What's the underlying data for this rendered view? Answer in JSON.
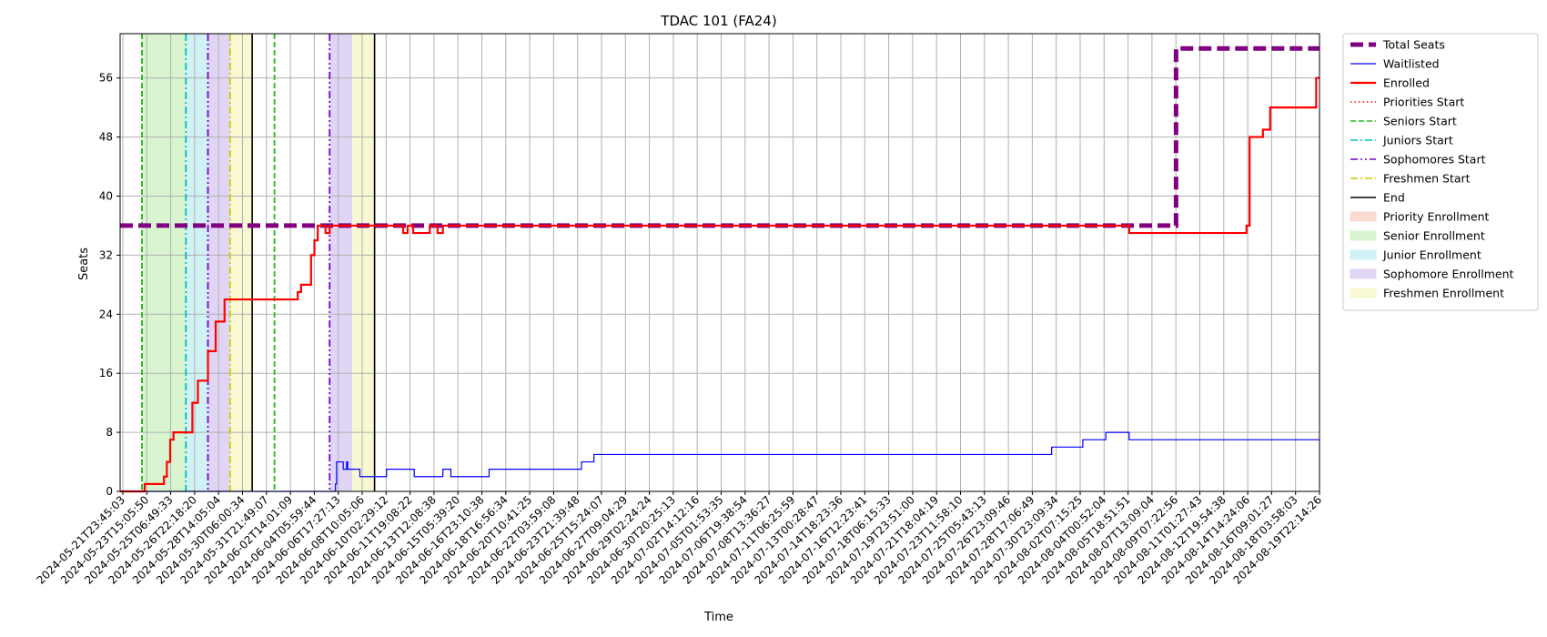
{
  "chart_data": {
    "type": "line",
    "title": "TDAC 101 (FA24)",
    "xlabel": "Time",
    "ylabel": "Seats",
    "ylim": [
      0,
      62
    ],
    "xlim": [
      "2024-05-21T23:45:03",
      "2024-08-20T02:00:00"
    ],
    "yticks": [
      0,
      8,
      16,
      24,
      32,
      40,
      48,
      56
    ],
    "grid": true,
    "legend_position": "outside-right",
    "x_tick_labels": [
      "2024-05-21T23:45:03",
      "2024-05-23T15:05:50",
      "2024-05-25T06:49:33",
      "2024-05-26T22:18:20",
      "2024-05-28T14:05:04",
      "2024-05-30T06:00:34",
      "2024-05-31T21:49:07",
      "2024-06-02T14:01:09",
      "2024-06-04T05:59:44",
      "2024-06-06T17:27:13",
      "2024-06-08T10:05:06",
      "2024-06-10T02:29:12",
      "2024-06-11T19:08:22",
      "2024-06-13T12:08:38",
      "2024-06-15T05:39:20",
      "2024-06-16T23:10:38",
      "2024-06-18T16:56:34",
      "2024-06-20T10:41:25",
      "2024-06-22T03:59:08",
      "2024-06-23T21:39:48",
      "2024-06-25T15:24:07",
      "2024-06-27T09:04:29",
      "2024-06-29T02:24:24",
      "2024-06-30T20:25:13",
      "2024-07-02T14:12:16",
      "2024-07-05T01:53:35",
      "2024-07-06T19:38:54",
      "2024-07-08T13:36:27",
      "2024-07-11T06:25:59",
      "2024-07-13T00:28:47",
      "2024-07-14T18:23:36",
      "2024-07-16T12:23:41",
      "2024-07-18T06:15:33",
      "2024-07-19T23:51:00",
      "2024-07-21T18:04:19",
      "2024-07-23T11:58:10",
      "2024-07-25T05:43:13",
      "2024-07-26T23:09:46",
      "2024-07-28T17:06:49",
      "2024-07-30T23:09:34",
      "2024-08-02T07:15:25",
      "2024-08-04T00:52:04",
      "2024-08-05T18:51:51",
      "2024-08-07T13:09:04",
      "2024-08-09T07:22:56",
      "2024-08-11T01:27:43",
      "2024-08-12T19:54:38",
      "2024-08-14T14:24:06",
      "2024-08-16T09:01:27",
      "2024-08-18T03:58:03",
      "2024-08-19T22:14:26"
    ],
    "x_tick_labels_positioned_by_index": true,
    "series": [
      {
        "name": "Total Seats",
        "style": "dashed-thick",
        "color": "#800080",
        "x": [
          "2024-05-21T23:45:03",
          "2024-08-09T07:22:56",
          "2024-08-09T07:22:56",
          "2024-08-20T02:00:00"
        ],
        "y": [
          36,
          36,
          60,
          60
        ]
      },
      {
        "name": "Waitlisted",
        "style": "solid-thin",
        "color": "#0000ff",
        "x": [
          "2024-05-21T23:45:03",
          "2024-06-06T17:27:13",
          "2024-06-07T00:00:00",
          "2024-06-07T04:00:00",
          "2024-06-07T06:00:00",
          "2024-06-07T18:00:00",
          "2024-06-08T00:00:00",
          "2024-06-08T02:00:00",
          "2024-06-08T20:00:00",
          "2024-06-08T22:00:00",
          "2024-06-09T00:00:00",
          "2024-06-10T18:00:00",
          "2024-06-11T00:00:00",
          "2024-06-13T00:00:00",
          "2024-06-13T02:00:00",
          "2024-06-14T16:00:00",
          "2024-06-15T05:39:20",
          "2024-06-15T20:00:00",
          "2024-06-16T06:00:00",
          "2024-06-18T16:56:34",
          "2024-06-25T15:24:07",
          "2024-06-26T14:00:00",
          "2024-07-30T23:09:34",
          "2024-08-02T07:15:25",
          "2024-08-03T08:00:00",
          "2024-08-04T00:52:04",
          "2024-08-05T18:51:51",
          "2024-08-20T02:00:00"
        ],
        "y": [
          0,
          0,
          0,
          1,
          4,
          3,
          4,
          3,
          3,
          3,
          2,
          2,
          3,
          3,
          2,
          2,
          3,
          2,
          2,
          3,
          4,
          5,
          6,
          7,
          7,
          8,
          7,
          7
        ]
      },
      {
        "name": "Enrolled",
        "style": "solid-thick",
        "color": "#ff0000",
        "x": [
          "2024-05-21T23:45:03",
          "2024-05-23T15:05:50",
          "2024-05-23T20:00:00",
          "2024-05-25T06:49:33",
          "2024-05-25T12:00:00",
          "2024-05-25T18:00:00",
          "2024-05-26T00:00:00",
          "2024-05-26T08:00:00",
          "2024-05-26T22:18:20",
          "2024-05-27T10:00:00",
          "2024-05-27T20:00:00",
          "2024-05-28T06:00:00",
          "2024-05-28T14:05:04",
          "2024-05-29T04:00:00",
          "2024-05-29T12:00:00",
          "2024-05-29T20:00:00",
          "2024-05-30T06:00:34",
          "2024-05-30T10:00:00",
          "2024-05-31T21:49:07",
          "2024-06-02T14:01:09",
          "2024-06-04T05:59:44",
          "2024-06-04T08:00:00",
          "2024-06-04T14:00:00",
          "2024-06-04T20:00:00",
          "2024-06-05T08:00:00",
          "2024-06-05T14:00:00",
          "2024-06-05T20:00:00",
          "2024-06-06T04:00:00",
          "2024-06-06T10:00:00",
          "2024-06-06T17:27:13",
          "2024-06-07T06:00:00",
          "2024-06-07T18:00:00",
          "2024-06-08T10:05:06",
          "2024-06-11T19:08:22",
          "2024-06-12T06:00:00",
          "2024-06-12T14:00:00",
          "2024-06-13T00:00:00",
          "2024-06-13T12:08:38",
          "2024-06-14T06:00:00",
          "2024-06-14T20:00:00",
          "2024-06-15T05:39:20",
          "2024-06-16T23:10:38",
          "2024-08-04T00:52:04",
          "2024-08-05T18:51:51",
          "2024-08-14T14:24:06",
          "2024-08-14T20:00:00",
          "2024-08-15T06:00:00",
          "2024-08-15T20:00:00",
          "2024-08-16T09:01:27",
          "2024-08-16T20:00:00",
          "2024-08-18T03:58:03",
          "2024-08-19T20:00:00",
          "2024-08-20T02:00:00"
        ],
        "y": [
          0,
          0,
          1,
          2,
          4,
          7,
          8,
          8,
          8,
          12,
          15,
          15,
          19,
          23,
          23,
          26,
          26,
          26,
          26,
          26,
          26,
          27,
          28,
          28,
          32,
          34,
          36,
          36,
          35,
          36,
          36,
          36,
          36,
          36,
          35,
          36,
          35,
          35,
          36,
          35,
          36,
          36,
          36,
          35,
          36,
          48,
          48,
          49,
          52,
          52,
          52,
          56,
          56
        ]
      }
    ],
    "vertical_lines": [
      {
        "name": "Priorities Start",
        "color": "#ff0000",
        "style": "dotted",
        "x": [
          "2024-05-23T15:05:50"
        ]
      },
      {
        "name": "Seniors Start",
        "color": "#22bb22",
        "style": "dashed",
        "x": [
          "2024-05-23T15:05:50",
          "2024-06-02T14:01:09"
        ]
      },
      {
        "name": "Juniors Start",
        "color": "#00bfbf",
        "style": "dashdot",
        "x": [
          "2024-05-26T22:18:20"
        ]
      },
      {
        "name": "Sophomores Start",
        "color": "#7700cc",
        "style": "dashdotdot",
        "x": [
          "2024-05-28T14:05:04",
          "2024-06-06T17:27:13"
        ]
      },
      {
        "name": "Freshmen Start",
        "color": "#cccc00",
        "style": "dashdot",
        "x": [
          "2024-05-30T06:00:34"
        ]
      },
      {
        "name": "End",
        "color": "#000000",
        "style": "solid",
        "x": [
          "2024-05-31T21:49:07",
          "2024-06-10T02:29:12"
        ]
      }
    ],
    "spans": [
      {
        "name": "Priority Enrollment",
        "color": "#fadbd2",
        "ranges": []
      },
      {
        "name": "Senior Enrollment",
        "color": "#d8f5d0",
        "ranges": [
          [
            "2024-05-23T15:05:50",
            "2024-05-26T22:18:20"
          ]
        ]
      },
      {
        "name": "Junior Enrollment",
        "color": "#d0f2f5",
        "ranges": [
          [
            "2024-05-26T22:18:20",
            "2024-05-28T14:05:04"
          ]
        ]
      },
      {
        "name": "Sophomore Enrollment",
        "color": "#e0d5f5",
        "ranges": [
          [
            "2024-05-28T14:05:04",
            "2024-05-30T06:00:34"
          ],
          [
            "2024-06-06T17:27:13",
            "2024-06-08T10:05:06"
          ]
        ]
      },
      {
        "name": "Freshmen Enrollment",
        "color": "#f8f8d2",
        "ranges": [
          [
            "2024-05-30T06:00:34",
            "2024-05-31T21:49:07"
          ],
          [
            "2024-06-08T10:05:06",
            "2024-06-10T02:29:12"
          ]
        ]
      }
    ],
    "legend": [
      {
        "label": "Total Seats",
        "kind": "line",
        "color": "#800080",
        "style": "dashed-thick"
      },
      {
        "label": "Waitlisted",
        "kind": "line",
        "color": "#0000ff",
        "style": "solid-thin"
      },
      {
        "label": "Enrolled",
        "kind": "line",
        "color": "#ff0000",
        "style": "solid-thick"
      },
      {
        "label": "Priorities Start",
        "kind": "line",
        "color": "#ff0000",
        "style": "dotted"
      },
      {
        "label": "Seniors Start",
        "kind": "line",
        "color": "#22bb22",
        "style": "dashed"
      },
      {
        "label": "Juniors Start",
        "kind": "line",
        "color": "#00bfbf",
        "style": "dashdot"
      },
      {
        "label": "Sophomores Start",
        "kind": "line",
        "color": "#7700cc",
        "style": "dashdotdot"
      },
      {
        "label": "Freshmen Start",
        "kind": "line",
        "color": "#cccc00",
        "style": "dashdot"
      },
      {
        "label": "End",
        "kind": "line",
        "color": "#000000",
        "style": "solid"
      },
      {
        "label": "Priority Enrollment",
        "kind": "patch",
        "color": "#fadbd2"
      },
      {
        "label": "Senior Enrollment",
        "kind": "patch",
        "color": "#d8f5d0"
      },
      {
        "label": "Junior Enrollment",
        "kind": "patch",
        "color": "#d0f2f5"
      },
      {
        "label": "Sophomore Enrollment",
        "kind": "patch",
        "color": "#e0d5f5"
      },
      {
        "label": "Freshmen Enrollment",
        "kind": "patch",
        "color": "#f8f8d2"
      }
    ]
  }
}
